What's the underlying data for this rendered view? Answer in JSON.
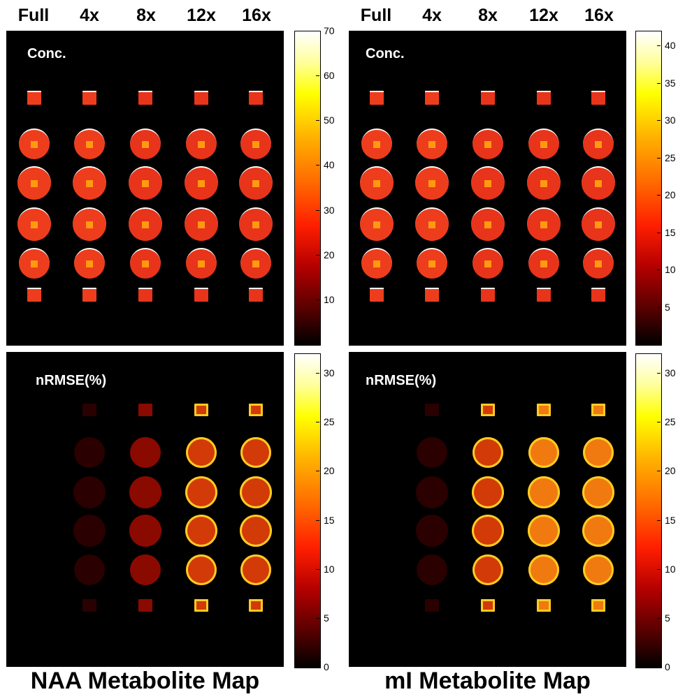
{
  "column_labels": [
    "Full",
    "4x",
    "8x",
    "12x",
    "16x"
  ],
  "panel_labels": {
    "concentration": "Conc.",
    "error": "nRMSE(%)"
  },
  "titles": {
    "left": "NAA Metabolite Map",
    "right": "mI Metabolite Map"
  },
  "chart_data": [
    {
      "type": "heatmap",
      "title": "NAA Metabolite Map",
      "panel": "Conc.",
      "columns": [
        "Full",
        "4x",
        "8x",
        "12x",
        "16x"
      ],
      "colorbar": {
        "min": 0,
        "max": 70,
        "ticks": [
          10,
          20,
          30,
          40,
          50,
          60,
          70
        ]
      },
      "colormap": "hot"
    },
    {
      "type": "heatmap",
      "title": "mI Metabolite Map",
      "panel": "Conc.",
      "columns": [
        "Full",
        "4x",
        "8x",
        "12x",
        "16x"
      ],
      "colorbar": {
        "min": 0,
        "max": 42,
        "ticks": [
          5,
          10,
          15,
          20,
          25,
          30,
          35,
          40
        ]
      },
      "colormap": "hot"
    },
    {
      "type": "heatmap",
      "title": "NAA Metabolite Map",
      "panel": "nRMSE(%)",
      "columns": [
        "Full",
        "4x",
        "8x",
        "12x",
        "16x"
      ],
      "colorbar": {
        "min": 0,
        "max": 32,
        "ticks": [
          0,
          5,
          10,
          15,
          20,
          25,
          30
        ]
      },
      "colormap": "hot",
      "mean_error_level_by_column": [
        0,
        2,
        9,
        16,
        14
      ]
    },
    {
      "type": "heatmap",
      "title": "mI Metabolite Map",
      "panel": "nRMSE(%)",
      "columns": [
        "Full",
        "4x",
        "8x",
        "12x",
        "16x"
      ],
      "colorbar": {
        "min": 0,
        "max": 32,
        "ticks": [
          0,
          5,
          10,
          15,
          20,
          25,
          30
        ]
      },
      "colormap": "hot",
      "mean_error_level_by_column": [
        0,
        3,
        14,
        22,
        24
      ]
    }
  ]
}
